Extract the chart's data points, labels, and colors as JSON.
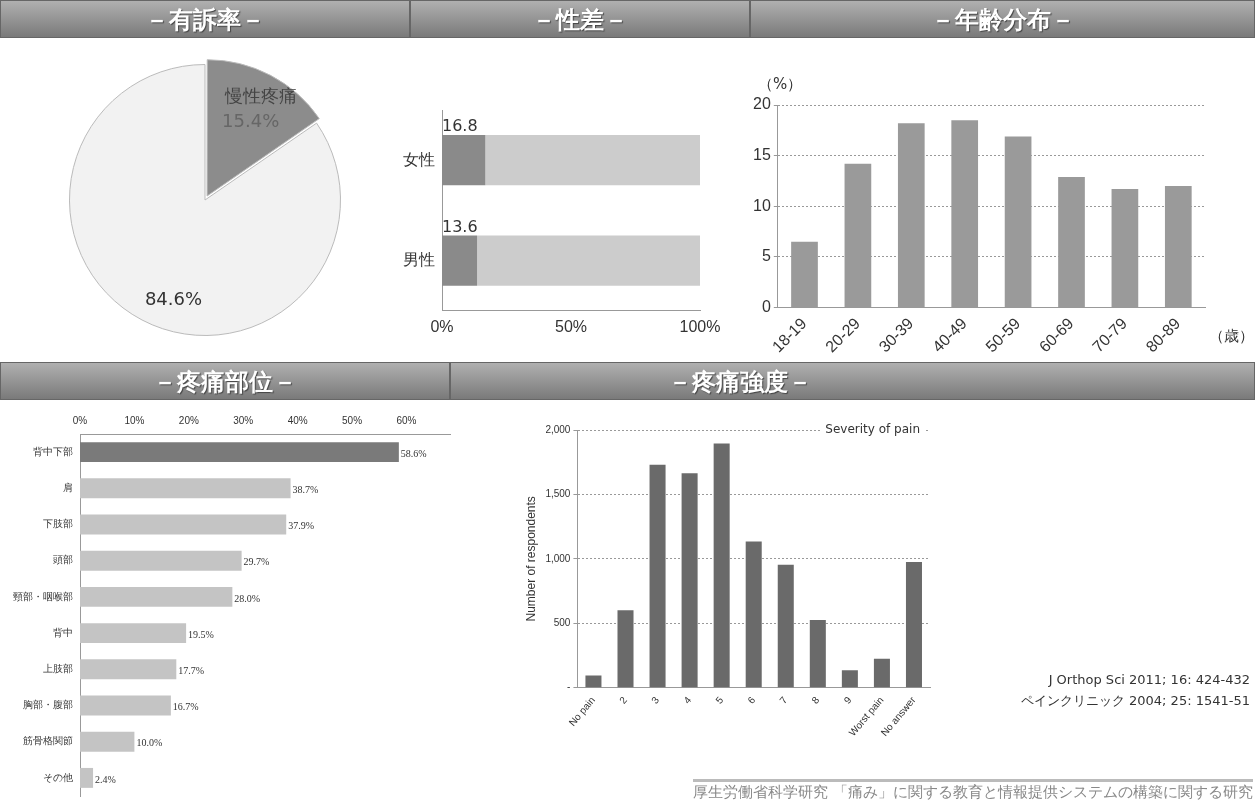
{
  "chart_data": [
    {
      "type": "pie",
      "title": "－有訴率－",
      "categories": [
        "慢性疼痛",
        null
      ],
      "values": [
        15.4,
        84.6
      ],
      "colors": [
        "#8c8c8c",
        "#f2f2f2"
      ],
      "value_labels": [
        "15.4%",
        "84.6%"
      ]
    },
    {
      "type": "bar",
      "title": "－性差－",
      "orientation": "horizontal",
      "stacked": true,
      "categories": [
        "女性",
        "男性"
      ],
      "series": [
        {
          "color": "#8a8a8a",
          "values": [
            16.8,
            13.6
          ],
          "value_labels": [
            "16.8",
            "13.6"
          ]
        },
        {
          "color": "#cccccc",
          "values": [
            83.2,
            86.4
          ]
        }
      ],
      "xlim": [
        0,
        100
      ],
      "xticks": [
        {
          "value": 0,
          "label": "0%"
        },
        {
          "value": 50,
          "label": "50%"
        },
        {
          "value": 100,
          "label": "100%"
        }
      ]
    },
    {
      "type": "bar",
      "title": "－年齢分布－",
      "ylabel": "（%）",
      "xlabel": "（歳）",
      "categories": [
        "18-19",
        "20-29",
        "30-39",
        "40-49",
        "50-59",
        "60-69",
        "70-79",
        "80-89"
      ],
      "values": [
        6.5,
        14.2,
        18.2,
        18.5,
        16.9,
        12.9,
        11.7,
        12.0
      ],
      "color": "#9a9a9a",
      "ylim": [
        0,
        20
      ],
      "yticks": [
        0,
        5,
        10,
        15,
        20
      ],
      "grid": "y"
    },
    {
      "type": "bar",
      "title": "－疼痛部位－",
      "orientation": "horizontal",
      "categories": [
        "背中下部",
        "肩",
        "下肢部",
        "頭部",
        "頸部・咽喉部",
        "背中",
        "上肢部",
        "胸部・腹部",
        "筋骨格関節",
        "その他"
      ],
      "values": [
        58.6,
        38.7,
        37.9,
        29.7,
        28.0,
        19.5,
        17.7,
        16.7,
        10.0,
        2.4
      ],
      "colors": [
        "#7a7a7a",
        "#c4c4c4",
        "#c4c4c4",
        "#c4c4c4",
        "#c4c4c4",
        "#c4c4c4",
        "#c4c4c4",
        "#c4c4c4",
        "#c4c4c4",
        "#c4c4c4"
      ],
      "value_labels": [
        "58.6%",
        "38.7%",
        "37.9%",
        "29.7%",
        "28.0%",
        "19.5%",
        "17.7%",
        "16.7%",
        "10.0%",
        "2.4%"
      ],
      "xlim": [
        0,
        68
      ],
      "xticks": [
        {
          "value": 0,
          "label": "0%"
        },
        {
          "value": 10,
          "label": "10%"
        },
        {
          "value": 20,
          "label": "20%"
        },
        {
          "value": 30,
          "label": "30%"
        },
        {
          "value": 40,
          "label": "40%"
        },
        {
          "value": 50,
          "label": "50%"
        },
        {
          "value": 60,
          "label": "60%"
        }
      ]
    },
    {
      "type": "bar",
      "title": "－疼痛強度－",
      "subtitle": "Severity of pain",
      "ylabel": "Number of respondents",
      "categories": [
        "No pain",
        "2",
        "3",
        "4",
        "5",
        "6",
        "7",
        "8",
        "9",
        "Worst pain",
        "No answer"
      ],
      "values": [
        95,
        600,
        1730,
        1665,
        1895,
        1135,
        955,
        525,
        135,
        225,
        975
      ],
      "color": "#6a6a6a",
      "ylim": [
        0,
        2000
      ],
      "yticks": [
        {
          "value": 0,
          "label": "-"
        },
        500,
        {
          "value": 1000,
          "label": "1,000"
        },
        {
          "value": 1500,
          "label": "1,500"
        },
        {
          "value": 2000,
          "label": "2,000"
        }
      ],
      "grid": "y",
      "annotations": [
        "J Orthop Sci 2011; 16: 424-432",
        "ペインクリニック 2004; 25: 1541-51",
        "厚生労働省科学研究 「痛み」に関する教育と情報提供システムの構築に関する研究"
      ]
    }
  ]
}
